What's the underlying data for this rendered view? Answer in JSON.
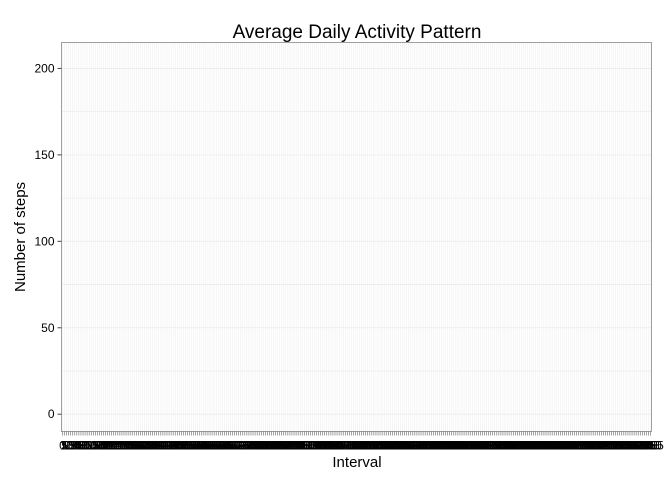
{
  "chart_data": {
    "type": "bar",
    "title": "Average Daily Activity Pattern",
    "xlabel": "Interval",
    "ylabel": "Number of steps",
    "ylim": [
      -10,
      215
    ],
    "yticks": [
      0,
      50,
      100,
      150,
      200
    ],
    "grid": true,
    "legend": "none",
    "x": [
      "0",
      "5",
      "10",
      "15",
      "20",
      "25",
      "30",
      "35",
      "40",
      "45",
      "50",
      "55",
      "100",
      "105",
      "110",
      "115",
      "120",
      "125",
      "130",
      "135",
      "140",
      "145",
      "150",
      "155",
      "200",
      "205",
      "210",
      "215",
      "220",
      "225",
      "230",
      "235",
      "240",
      "245",
      "250",
      "255",
      "300",
      "305",
      "310",
      "315",
      "320",
      "325",
      "330",
      "335",
      "340",
      "345",
      "350",
      "355",
      "400",
      "405",
      "410",
      "415",
      "420",
      "425",
      "430",
      "435",
      "440",
      "445",
      "450",
      "455",
      "500",
      "505",
      "510",
      "515",
      "520",
      "525",
      "530",
      "535",
      "540",
      "545",
      "550",
      "555",
      "600",
      "605",
      "610",
      "615",
      "620",
      "625",
      "630",
      "635",
      "640",
      "645",
      "650",
      "655",
      "700",
      "705",
      "710",
      "715",
      "720",
      "725",
      "730",
      "735",
      "740",
      "745",
      "750",
      "755",
      "800",
      "805",
      "810",
      "815",
      "820",
      "825",
      "830",
      "835",
      "840",
      "845",
      "850",
      "855",
      "900",
      "905",
      "910",
      "915",
      "920",
      "925",
      "930",
      "935",
      "940",
      "945",
      "950",
      "955",
      "1000",
      "1005",
      "1010",
      "1015",
      "1020",
      "1025",
      "1030",
      "1035",
      "1040",
      "1045",
      "1050",
      "1055",
      "1100",
      "1105",
      "1110",
      "1115",
      "1120",
      "1125",
      "1130",
      "1135",
      "1140",
      "1145",
      "1150",
      "1155",
      "1200",
      "1205",
      "1210",
      "1215",
      "1220",
      "1225",
      "1230",
      "1235",
      "1240",
      "1245",
      "1250",
      "1255",
      "1300",
      "1305",
      "1310",
      "1315",
      "1320",
      "1325",
      "1330",
      "1335",
      "1340",
      "1345",
      "1350",
      "1355",
      "1400",
      "1405",
      "1410",
      "1415",
      "1420",
      "1425",
      "1430",
      "1435",
      "1440",
      "1445",
      "1450",
      "1455",
      "1500",
      "1505",
      "1510",
      "1515",
      "1520",
      "1525",
      "1530",
      "1535",
      "1540",
      "1545",
      "1550",
      "1555",
      "1600",
      "1605",
      "1610",
      "1615",
      "1620",
      "1625",
      "1630",
      "1635",
      "1640",
      "1645",
      "1650",
      "1655",
      "1700",
      "1705",
      "1710",
      "1715",
      "1720",
      "1725",
      "1730",
      "1735",
      "1740",
      "1745",
      "1750",
      "1755",
      "1800",
      "1805",
      "1810",
      "1815",
      "1820",
      "1825",
      "1830",
      "1835",
      "1840",
      "1845",
      "1850",
      "1855",
      "1900",
      "1905",
      "1910",
      "1915",
      "1920",
      "1925",
      "1930",
      "1935",
      "1940",
      "1945",
      "1950",
      "1955",
      "2000",
      "2005",
      "2010",
      "2015",
      "2020",
      "2025",
      "2030",
      "2035",
      "2040",
      "2045",
      "2050",
      "2055",
      "2100",
      "2105",
      "2110",
      "2115",
      "2120",
      "2125",
      "2130",
      "2135",
      "2140",
      "2145",
      "2150",
      "2155",
      "2200",
      "2205",
      "2210",
      "2215",
      "2220",
      "2225",
      "2230",
      "2235",
      "2240",
      "2245",
      "2250",
      "2255",
      "2300",
      "2305",
      "2310",
      "2315",
      "2320",
      "2325",
      "2330",
      "2335",
      "2340",
      "2345",
      "2350",
      "2355"
    ],
    "colors": {
      "panel_border": "#a0a0a0",
      "grid": "#ececec",
      "tick": "#444444",
      "text": "#000000"
    }
  }
}
